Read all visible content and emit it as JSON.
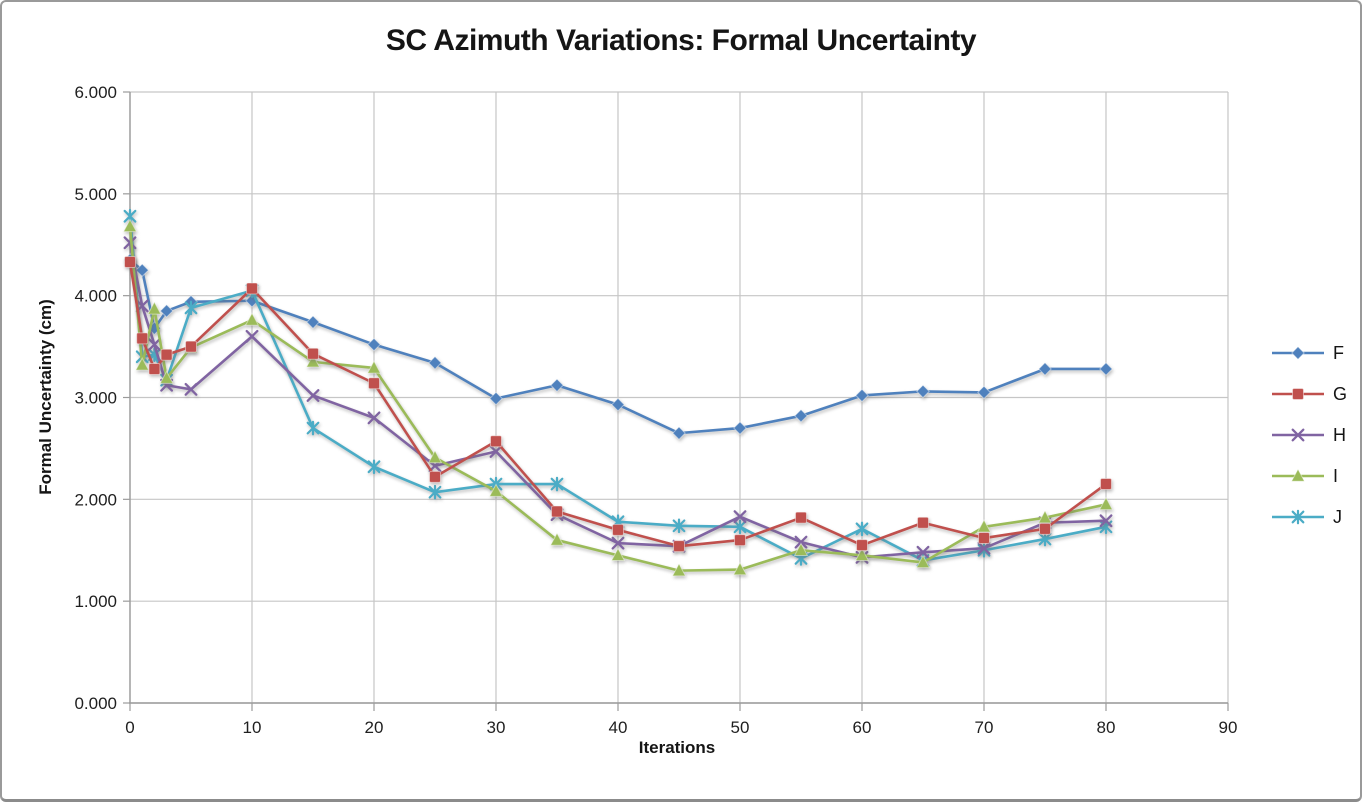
{
  "chart_data": {
    "type": "line",
    "title": "SC Azimuth Variations: Formal Uncertainty",
    "xlabel": "Iterations",
    "ylabel": "Formal Uncertainty (cm)",
    "xlim": [
      0,
      90
    ],
    "ylim": [
      0,
      6
    ],
    "grid": true,
    "legend_position": "right",
    "x_ticks": [
      0,
      10,
      20,
      30,
      40,
      50,
      60,
      70,
      80,
      90
    ],
    "y_tick_labels": [
      "0.000",
      "1.000",
      "2.000",
      "3.000",
      "4.000",
      "5.000",
      "6.000"
    ],
    "x": [
      0,
      1,
      2,
      3,
      5,
      10,
      15,
      20,
      25,
      30,
      35,
      40,
      45,
      50,
      55,
      60,
      65,
      70,
      75,
      80
    ],
    "series": [
      {
        "name": "F",
        "marker": "diamond",
        "color": "#4F81BD",
        "values": [
          4.35,
          4.25,
          3.68,
          3.85,
          3.94,
          3.95,
          3.74,
          3.52,
          3.34,
          2.99,
          3.12,
          2.93,
          2.65,
          2.7,
          2.82,
          3.02,
          3.06,
          3.05,
          3.28,
          3.28
        ]
      },
      {
        "name": "G",
        "marker": "square",
        "color": "#C0504D",
        "values": [
          4.33,
          3.58,
          3.28,
          3.42,
          3.5,
          4.07,
          3.43,
          3.14,
          2.22,
          2.57,
          1.88,
          1.7,
          1.54,
          1.6,
          1.82,
          1.55,
          1.77,
          1.62,
          1.71,
          2.15
        ]
      },
      {
        "name": "H",
        "marker": "x",
        "color": "#8064A2",
        "values": [
          4.52,
          3.9,
          3.52,
          3.12,
          3.08,
          3.6,
          3.02,
          2.8,
          2.33,
          2.47,
          1.85,
          1.57,
          1.54,
          1.83,
          1.58,
          1.43,
          1.48,
          1.52,
          1.77,
          1.79
        ]
      },
      {
        "name": "I",
        "marker": "triangle",
        "color": "#9BBB59",
        "values": [
          4.68,
          3.32,
          3.87,
          3.19,
          3.49,
          3.76,
          3.35,
          3.29,
          2.41,
          2.08,
          1.6,
          1.45,
          1.3,
          1.31,
          1.5,
          1.45,
          1.38,
          1.73,
          1.82,
          1.95
        ]
      },
      {
        "name": "J",
        "marker": "asterisk",
        "color": "#4BACC6",
        "values": [
          4.78,
          3.4,
          3.42,
          3.17,
          3.88,
          4.05,
          2.7,
          2.32,
          2.07,
          2.15,
          2.15,
          1.78,
          1.74,
          1.73,
          1.42,
          1.71,
          1.4,
          1.5,
          1.61,
          1.73
        ]
      }
    ]
  },
  "palette": {
    "gridline": "#C6C6C6",
    "axis": "#9B9B9B",
    "tick_text": "#1f1f1f",
    "window_border": "#9a9a9a"
  }
}
